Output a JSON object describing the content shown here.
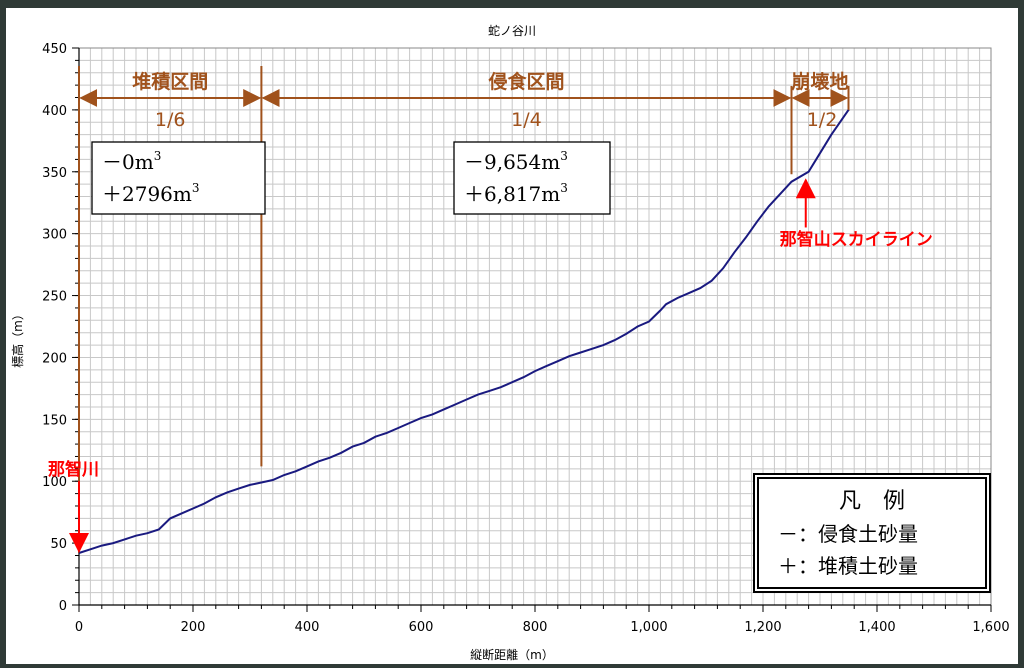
{
  "chart_data": {
    "type": "line",
    "title": "蛇ノ谷川",
    "xlabel": "縦断距離（m）",
    "ylabel": "標高（m）",
    "xlim": [
      0,
      1600
    ],
    "ylim": [
      0,
      450
    ],
    "xticks": [
      0,
      200,
      400,
      600,
      800,
      1000,
      1200,
      1400,
      1600
    ],
    "xtick_labels": [
      "0",
      "200",
      "400",
      "600",
      "800",
      "1,000",
      "1,200",
      "1,400",
      "1,600"
    ],
    "yticks": [
      0,
      50,
      100,
      150,
      200,
      250,
      300,
      350,
      400,
      450
    ],
    "ytick_labels": [
      "0",
      "50",
      "100",
      "150",
      "200",
      "250",
      "300",
      "350",
      "400",
      "450"
    ],
    "grid": true,
    "series_color": "#1a1a80",
    "series": [
      {
        "x": [
          0,
          20,
          40,
          60,
          80,
          100,
          120,
          140,
          160,
          180,
          200,
          220,
          240,
          260,
          280,
          300,
          320,
          340,
          360,
          380,
          400,
          420,
          440,
          460,
          480,
          500,
          520,
          540,
          560,
          580,
          600,
          620,
          640,
          660,
          680,
          700,
          720,
          740,
          760,
          780,
          800,
          820,
          840,
          860,
          880,
          900,
          920,
          940,
          960,
          980,
          1000,
          1020,
          1030,
          1050,
          1070,
          1090,
          1110,
          1130,
          1150,
          1170,
          1190,
          1210,
          1230,
          1250,
          1280,
          1300,
          1320,
          1350
        ],
        "y": [
          42,
          45,
          48,
          50,
          53,
          56,
          58,
          61,
          70,
          74,
          78,
          82,
          87,
          91,
          94,
          97,
          99,
          101,
          105,
          108,
          112,
          116,
          119,
          123,
          128,
          131,
          136,
          139,
          143,
          147,
          151,
          154,
          158,
          162,
          166,
          170,
          173,
          176,
          180,
          184,
          189,
          193,
          197,
          201,
          204,
          207,
          210,
          214,
          219,
          225,
          229,
          238,
          243,
          248,
          252,
          256,
          262,
          272,
          285,
          297,
          310,
          322,
          332,
          342,
          350,
          365,
          380,
          400
        ]
      }
    ],
    "annotations": {
      "zones": [
        {
          "label": "堆積区間",
          "ratio": "1/6",
          "minus": "－0m",
          "plus": "＋2796m"
        },
        {
          "label": "侵食区間",
          "ratio": "1/4",
          "minus": "－9,654m",
          "plus": "＋6,817m"
        },
        {
          "label": "崩壊地",
          "ratio": "1/2"
        }
      ],
      "zone_boundaries": [
        0,
        320,
        1250,
        1350
      ],
      "exponent": "3",
      "points": [
        {
          "label": "那智川",
          "x": 0,
          "y": 42
        },
        {
          "label": "那智山スカイライン",
          "x": 1275,
          "y": 348
        }
      ],
      "annotation_color": "#a0521c",
      "point_color": "#ff0000"
    },
    "legend": {
      "title": "凡　例",
      "items": [
        "－：侵食土砂量",
        "＋：堆積土砂量"
      ],
      "placement": "bottom-right"
    }
  }
}
